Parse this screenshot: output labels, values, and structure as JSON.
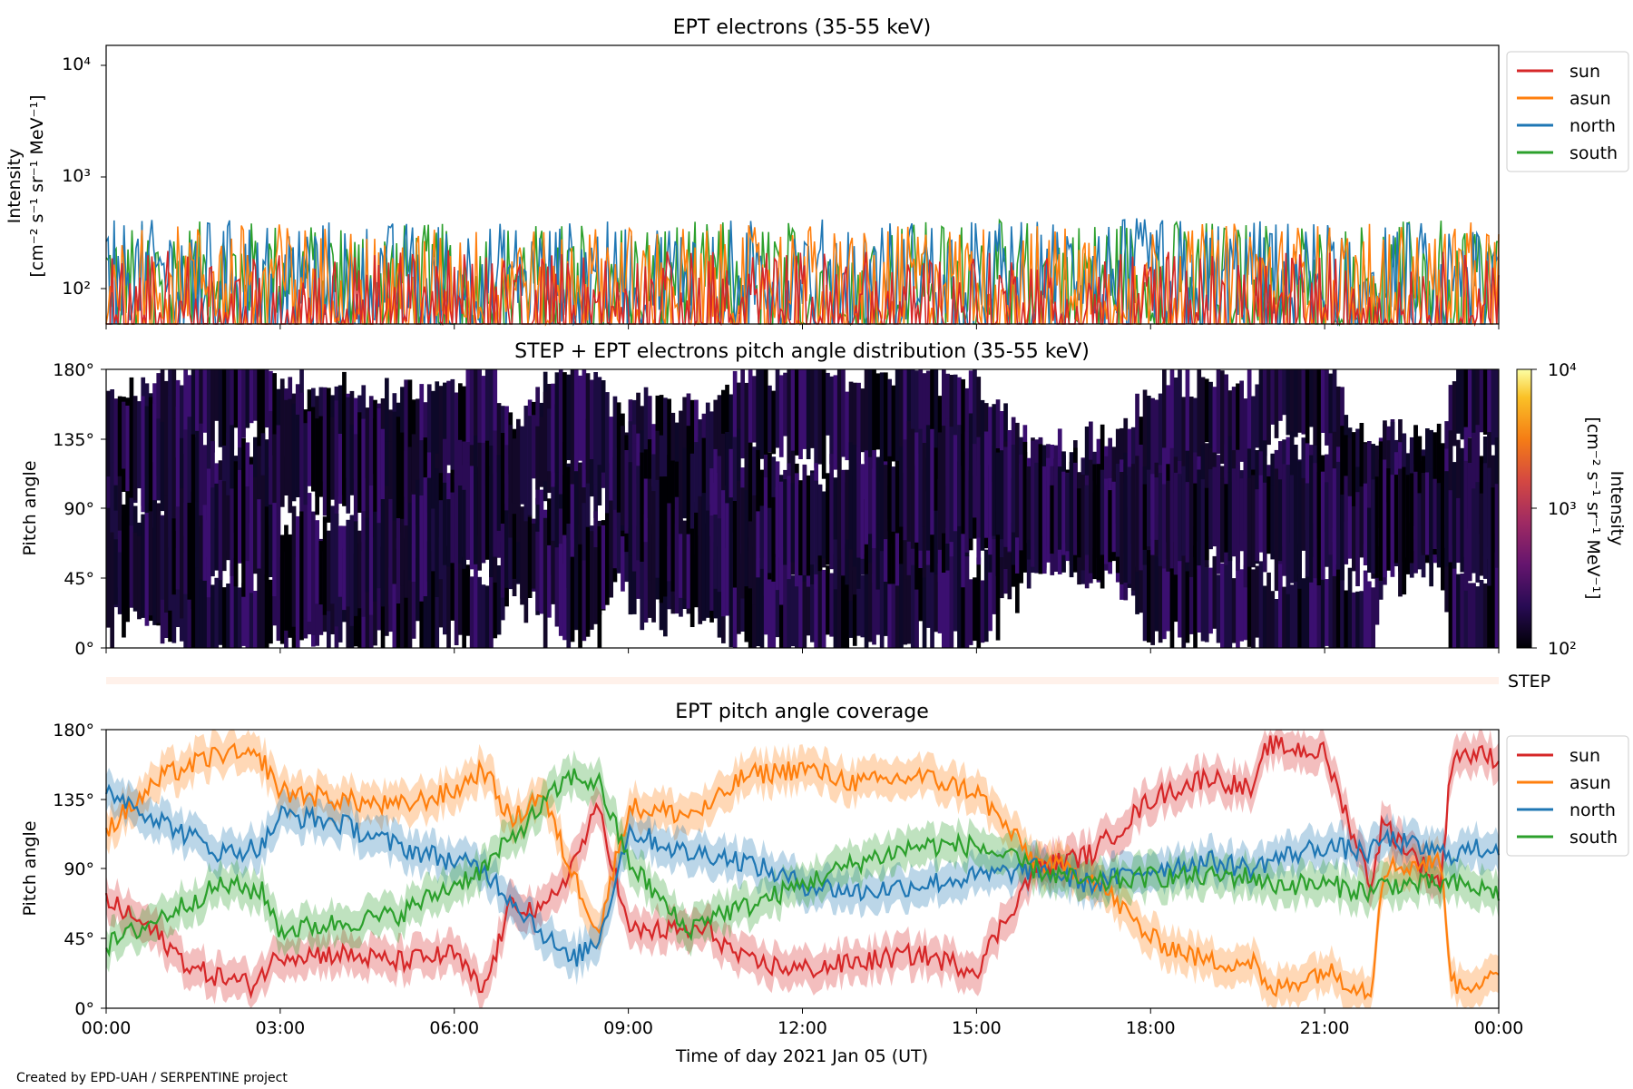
{
  "credit": "Created by EPD-UAH / SERPENTINE project",
  "xaxis": {
    "label": "Time of day 2021 Jan 05 (UT)",
    "ticks": [
      "00:00",
      "03:00",
      "06:00",
      "09:00",
      "12:00",
      "15:00",
      "18:00",
      "21:00",
      "00:00"
    ],
    "range_hours": [
      0,
      24
    ]
  },
  "panels": {
    "p1": {
      "title": "EPT electrons (35-55 keV)",
      "ylabel_1": "Intensity",
      "ylabel_2": "[cm⁻² s⁻¹ sr⁻¹ MeV⁻¹]",
      "yticks": [
        "10²",
        "10³",
        "10⁴"
      ]
    },
    "p2": {
      "title": "STEP + EPT electrons pitch angle distribution (35-55 keV)",
      "ylabel": "Pitch angle",
      "yticks": [
        "0°",
        "45°",
        "90°",
        "135°",
        "180°"
      ]
    },
    "step": {
      "label": "STEP"
    },
    "p3": {
      "title": "EPT pitch angle coverage",
      "ylabel": "Pitch angle",
      "yticks": [
        "0°",
        "45°",
        "90°",
        "135°",
        "180°"
      ]
    },
    "colorbar": {
      "label_1": "Intensity",
      "label_2": "[cm⁻² s⁻¹ sr⁻¹ MeV⁻¹]",
      "ticks": [
        "10²",
        "10³",
        "10⁴"
      ]
    }
  },
  "legend": [
    "sun",
    "asun",
    "north",
    "south"
  ],
  "colors": {
    "sun": "#d62728",
    "asun": "#ff7f0e",
    "north": "#1f77b4",
    "south": "#2ca02c"
  },
  "chart_data": [
    {
      "type": "line",
      "title": "EPT electrons (35-55 keV)",
      "ylabel": "Intensity [cm⁻² s⁻¹ sr⁻¹ MeV⁻¹]",
      "yscale": "log",
      "ylim": [
        50,
        14000
      ],
      "xlim_hours": [
        0,
        24
      ],
      "legend": "top-right outside",
      "series": [
        {
          "name": "sun",
          "x_hours": [
            0,
            3,
            6,
            9,
            12,
            15,
            18,
            21,
            24
          ],
          "values": [
            120,
            115,
            120,
            118,
            122,
            115,
            120,
            118,
            120
          ]
        },
        {
          "name": "asun",
          "x_hours": [
            0,
            3,
            6,
            9,
            12,
            15,
            18,
            21,
            24
          ],
          "values": [
            200,
            210,
            190,
            200,
            205,
            200,
            210,
            205,
            210
          ]
        },
        {
          "name": "north",
          "x_hours": [
            0,
            3,
            6,
            9,
            12,
            15,
            18,
            21,
            24
          ],
          "values": [
            220,
            230,
            210,
            220,
            230,
            225,
            230,
            220,
            230
          ]
        },
        {
          "name": "south",
          "x_hours": [
            0,
            3,
            6,
            9,
            12,
            15,
            18,
            21,
            24
          ],
          "values": [
            210,
            220,
            205,
            215,
            220,
            220,
            225,
            215,
            225
          ]
        }
      ]
    },
    {
      "type": "heatmap",
      "title": "STEP + EPT electrons pitch angle distribution (35-55 keV)",
      "ylabel": "Pitch angle",
      "ylim": [
        0,
        180
      ],
      "colorbar_scale": "log",
      "colorbar_range": [
        100,
        10000
      ],
      "colormap": "inferno"
    },
    {
      "type": "line",
      "title": "EPT pitch angle coverage",
      "ylabel": "Pitch angle",
      "ylim": [
        0,
        180
      ],
      "xlim_hours": [
        0,
        24
      ],
      "legend": "top-right outside",
      "series": [
        {
          "name": "sun",
          "x_hours": [
            0,
            0.8,
            1.5,
            2.5,
            3,
            4,
            5,
            6,
            6.5,
            7,
            7.5,
            8,
            8.5,
            9,
            10,
            10.4,
            11,
            12,
            13,
            14,
            15,
            16,
            17,
            18,
            19,
            19.8,
            20,
            21,
            21.8,
            22,
            23,
            23.2,
            24
          ],
          "values": [
            70,
            50,
            25,
            15,
            35,
            35,
            30,
            35,
            10,
            70,
            60,
            90,
            130,
            50,
            50,
            50,
            30,
            25,
            30,
            35,
            25,
            90,
            100,
            135,
            150,
            140,
            170,
            165,
            80,
            120,
            80,
            165,
            162
          ]
        },
        {
          "name": "asun",
          "x_hours": [
            0,
            1,
            2,
            2.7,
            3,
            4,
            5,
            6,
            6.5,
            7,
            7.5,
            8,
            8.5,
            9,
            10,
            10.4,
            11,
            12,
            13,
            14,
            15,
            16,
            17,
            18,
            19,
            19.8,
            20,
            21,
            21.8,
            22,
            23,
            23.2,
            24
          ],
          "values": [
            115,
            150,
            165,
            160,
            140,
            135,
            130,
            140,
            155,
            120,
            140,
            90,
            50,
            130,
            125,
            130,
            150,
            155,
            145,
            150,
            140,
            95,
            85,
            45,
            30,
            30,
            10,
            25,
            10,
            90,
            95,
            15,
            18
          ]
        },
        {
          "name": "north",
          "x_hours": [
            0,
            1,
            2,
            2.7,
            3,
            4,
            5,
            6,
            6.5,
            7,
            7.5,
            8,
            8.5,
            9,
            10,
            10.4,
            11,
            12,
            13,
            14,
            15,
            16,
            17,
            18,
            19,
            19.8,
            20,
            21,
            21.8,
            22,
            23,
            23.2,
            24
          ],
          "values": [
            142,
            120,
            100,
            105,
            125,
            120,
            105,
            95,
            90,
            70,
            50,
            30,
            45,
            115,
            100,
            100,
            95,
            80,
            75,
            80,
            85,
            90,
            80,
            90,
            95,
            90,
            95,
            105,
            100,
            110,
            100,
            100,
            105
          ]
        },
        {
          "name": "south",
          "x_hours": [
            0,
            1,
            2,
            2.7,
            3,
            4,
            5,
            6,
            6.5,
            7,
            7.5,
            8,
            8.5,
            9,
            10,
            10.4,
            11,
            12,
            13,
            14,
            15,
            16,
            17,
            18,
            19,
            19.8,
            20,
            21,
            21.8,
            22,
            23,
            23.2,
            24
          ],
          "values": [
            40,
            60,
            80,
            75,
            50,
            55,
            60,
            80,
            90,
            110,
            130,
            150,
            145,
            95,
            50,
            60,
            65,
            80,
            95,
            105,
            105,
            90,
            80,
            85,
            85,
            85,
            80,
            80,
            75,
            80,
            80,
            80,
            75
          ]
        }
      ]
    }
  ]
}
